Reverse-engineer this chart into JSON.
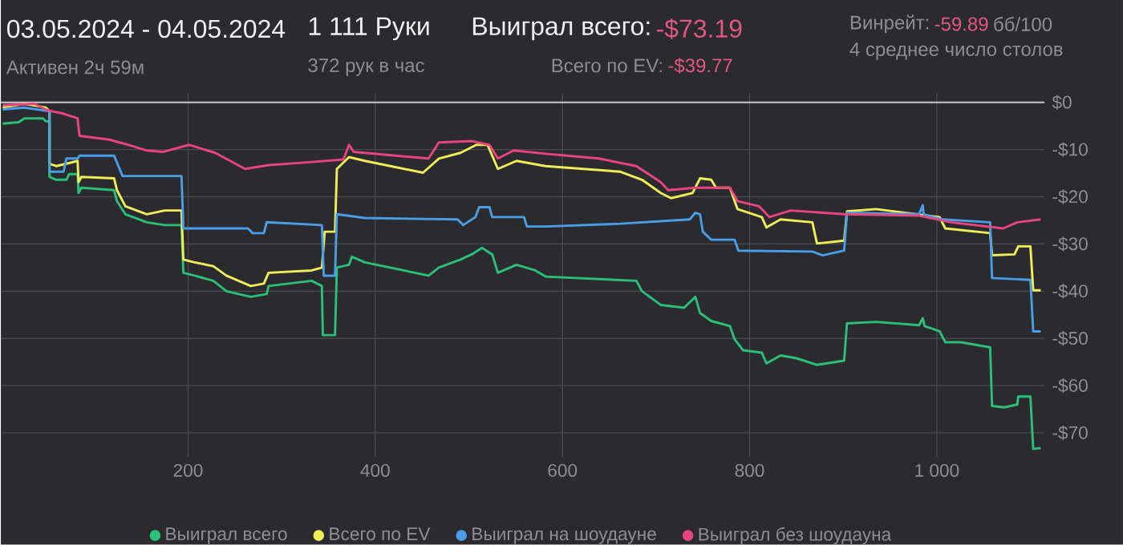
{
  "chart_data": {
    "type": "line",
    "annotations": [
      "03.05.2024 - 04.05.2024",
      "Активен 2ч 59м",
      "1 111 Руки",
      "372 рук в час",
      "Выиграл всего:",
      "-$73.19",
      "Всего по EV:",
      "-$39.77",
      "Винрейт:",
      "-59.89",
      "бб/100",
      "4 среднее число столов"
    ],
    "xlim": [
      0,
      1115
    ],
    "ylim": [
      -75,
      2
    ],
    "xticks": [
      200,
      400,
      600,
      800,
      {
        "value": 1000,
        "label": "1 000"
      }
    ],
    "yticks": [
      {
        "value": 0,
        "label": "$0"
      },
      {
        "value": -10,
        "label": "-$10"
      },
      {
        "value": -20,
        "label": "-$20"
      },
      {
        "value": -30,
        "label": "-$30"
      },
      {
        "value": -40,
        "label": "-$40"
      },
      {
        "value": -50,
        "label": "-$50"
      },
      {
        "value": -60,
        "label": "-$60"
      },
      {
        "value": -70,
        "label": "-$70"
      }
    ],
    "grid": true,
    "legend": "bottom",
    "marker": "none",
    "line_style": "solid",
    "ref_lines": [
      {
        "axis": "y",
        "value": 0,
        "color": "#c8c8c8"
      }
    ],
    "series": [
      {
        "name": "Выиграл всего",
        "color": "#2bbf7a",
        "x": [
          2,
          19,
          25,
          45,
          48,
          52,
          52,
          59,
          70,
          73,
          82,
          83,
          86,
          121,
          124,
          133,
          156,
          175,
          193,
          195,
          207,
          227,
          241,
          267,
          284,
          286,
          332,
          343,
          344,
          357,
          359,
          372,
          375,
          389,
          457,
          468,
          491,
          503,
          514,
          525,
          531,
          551,
          571,
          582,
          679,
          685,
          705,
          730,
          742,
          747,
          759,
          779,
          784,
          793,
          813,
          818,
          833,
          850,
          872,
          901,
          904,
          935,
          981,
          985,
          987,
          1003,
          1009,
          1026,
          1057,
          1059,
          1072,
          1086,
          1087,
          1100,
          1103,
          1111
        ],
        "values": [
          -4.5,
          -4.2,
          -3.4,
          -3.4,
          -4.0,
          -4.0,
          -15.8,
          -16.4,
          -16.4,
          -15.2,
          -15.2,
          -19.2,
          -18.1,
          -18.6,
          -20.9,
          -23.7,
          -25.4,
          -26.0,
          -26.0,
          -36.1,
          -36.7,
          -37.8,
          -40.0,
          -41.2,
          -40.6,
          -38.9,
          -37.8,
          -38.9,
          -49.3,
          -49.3,
          -35.0,
          -34.4,
          -32.7,
          -33.9,
          -36.7,
          -35.0,
          -33.3,
          -32.2,
          -30.8,
          -32.2,
          -36.1,
          -34.4,
          -35.6,
          -36.9,
          -37.8,
          -40.0,
          -42.9,
          -43.5,
          -41.2,
          -44.6,
          -46.3,
          -47.4,
          -50.2,
          -52.5,
          -53.0,
          -55.3,
          -53.6,
          -54.2,
          -55.6,
          -54.7,
          -46.8,
          -46.5,
          -47.2,
          -45.7,
          -47.4,
          -48.5,
          -50.8,
          -50.8,
          -51.9,
          -64.3,
          -64.6,
          -64.0,
          -62.3,
          -62.3,
          -73.4,
          -73.2
        ]
      },
      {
        "name": "Всего по EV",
        "color": "#eeee58",
        "x": [
          2,
          25,
          48,
          52,
          52,
          59,
          70,
          82,
          83,
          86,
          121,
          124,
          133,
          156,
          175,
          193,
          195,
          207,
          227,
          241,
          267,
          281,
          286,
          332,
          343,
          346,
          357,
          359,
          372,
          389,
          451,
          468,
          491,
          508,
          520,
          531,
          551,
          582,
          662,
          685,
          705,
          716,
          739,
          747,
          759,
          764,
          779,
          787,
          813,
          818,
          833,
          867,
          872,
          901,
          904,
          935,
          1003,
          1009,
          1057,
          1059,
          1083,
          1087,
          1100,
          1103,
          1111
        ],
        "values": [
          -1.1,
          -0.3,
          -1.1,
          -1.9,
          -13.0,
          -13.5,
          -13.0,
          -12.4,
          -16.9,
          -15.8,
          -16.1,
          -18.6,
          -22.0,
          -23.7,
          -22.9,
          -22.9,
          -33.3,
          -33.9,
          -34.7,
          -36.7,
          -38.9,
          -38.4,
          -36.1,
          -35.6,
          -35.0,
          -27.4,
          -27.4,
          -14.1,
          -11.6,
          -12.4,
          -14.9,
          -11.9,
          -10.7,
          -9.0,
          -9.0,
          -14.1,
          -12.4,
          -13.5,
          -14.7,
          -16.4,
          -19.2,
          -20.3,
          -19.2,
          -16.1,
          -16.4,
          -18.1,
          -18.1,
          -22.6,
          -24.3,
          -26.5,
          -24.8,
          -25.4,
          -29.9,
          -29.3,
          -23.1,
          -22.6,
          -24.3,
          -26.7,
          -27.7,
          -32.4,
          -32.2,
          -30.5,
          -30.5,
          -39.8,
          -39.8
        ]
      },
      {
        "name": "Выиграл на шоудауне",
        "color": "#4a9ee8",
        "x": [
          2,
          25,
          52,
          52,
          67,
          70,
          82,
          84,
          121,
          130,
          193,
          195,
          264,
          269,
          281,
          284,
          343,
          345,
          357,
          359,
          389,
          488,
          494,
          507,
          511,
          522,
          525,
          559,
          562,
          582,
          662,
          736,
          742,
          747,
          750,
          759,
          784,
          788,
          867,
          878,
          901,
          904,
          981,
          985,
          986,
          1006,
          1057,
          1059,
          1100,
          1103,
          1111
        ],
        "values": [
          -1.5,
          -1.1,
          -1.9,
          -14.7,
          -14.7,
          -11.9,
          -11.9,
          -11.3,
          -11.3,
          -15.6,
          -15.6,
          -26.7,
          -26.7,
          -27.7,
          -27.7,
          -25.4,
          -26.0,
          -36.7,
          -36.7,
          -23.7,
          -24.5,
          -24.8,
          -26.0,
          -24.3,
          -22.2,
          -22.2,
          -24.3,
          -24.3,
          -26.3,
          -26.3,
          -25.7,
          -24.8,
          -23.4,
          -23.7,
          -27.4,
          -29.1,
          -29.1,
          -31.4,
          -31.6,
          -32.4,
          -31.4,
          -23.4,
          -23.7,
          -21.8,
          -23.7,
          -24.8,
          -25.4,
          -37.2,
          -37.6,
          -48.5,
          -48.5
        ]
      },
      {
        "name": "Выиграл без шоудауна",
        "color": "#e8457d",
        "x": [
          2,
          36,
          50,
          65,
          82,
          84,
          116,
          136,
          156,
          173,
          201,
          229,
          261,
          286,
          321,
          366,
          372,
          377,
          457,
          468,
          503,
          522,
          531,
          548,
          582,
          639,
          679,
          705,
          713,
          742,
          779,
          787,
          810,
          821,
          844,
          901,
          981,
          1015,
          1071,
          1086,
          1111
        ],
        "values": [
          -0.6,
          -0.3,
          -1.7,
          -2.3,
          -3.4,
          -7.1,
          -7.9,
          -9.0,
          -10.2,
          -10.5,
          -9.0,
          -10.7,
          -14.1,
          -13.3,
          -12.8,
          -12.1,
          -9.0,
          -10.5,
          -11.9,
          -8.5,
          -8.2,
          -9.0,
          -11.9,
          -10.2,
          -10.9,
          -11.9,
          -13.5,
          -16.9,
          -18.6,
          -18.1,
          -18.1,
          -20.9,
          -22.0,
          -24.3,
          -22.9,
          -23.7,
          -24.0,
          -25.4,
          -26.7,
          -25.4,
          -24.8
        ]
      }
    ]
  }
}
